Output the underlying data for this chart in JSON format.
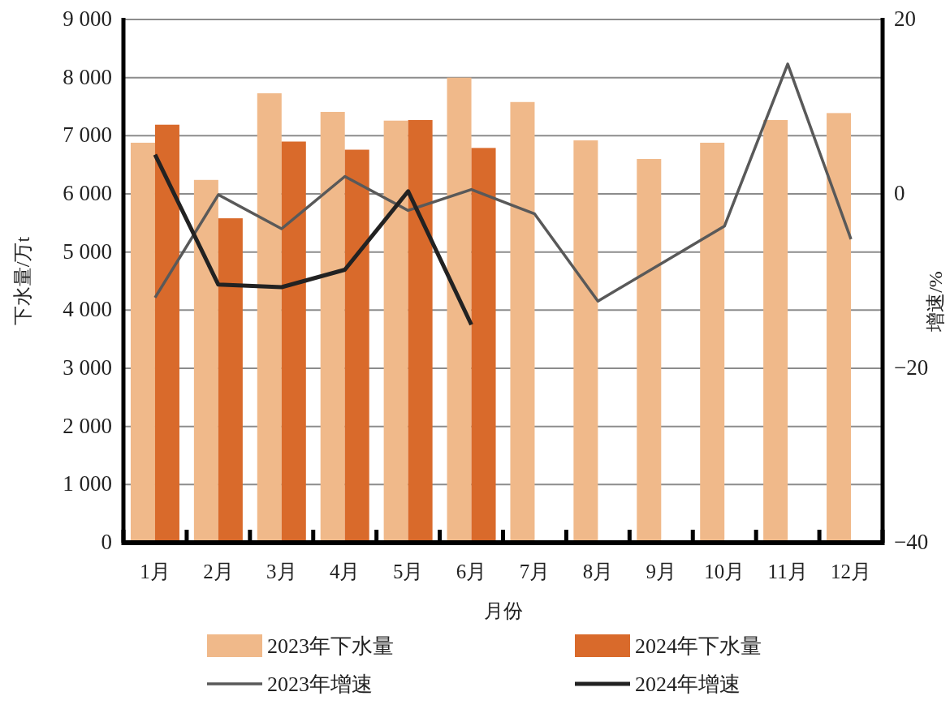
{
  "chart_data": {
    "type": "bar",
    "xlabel": "月份",
    "ylabel": "下水量/万t",
    "y2label": "增速/%",
    "categories": [
      "1月",
      "2月",
      "3月",
      "4月",
      "5月",
      "6月",
      "7月",
      "8月",
      "9月",
      "10月",
      "11月",
      "12月"
    ],
    "series": [
      {
        "name": "2023年下水量",
        "color": "#f0b98a",
        "values": [
          6880,
          6240,
          7730,
          7410,
          7260,
          8000,
          7580,
          6920,
          6600,
          6880,
          7270,
          7390
        ]
      },
      {
        "name": "2024年下水量",
        "color": "#d96a2b",
        "values": [
          7190,
          5580,
          6900,
          6760,
          7270,
          6790,
          null,
          null,
          null,
          null,
          null,
          null
        ]
      },
      {
        "name": "2023年增速",
        "type": "line",
        "axis": "y2",
        "color": "#595959",
        "values": [
          -11.9,
          -0.1,
          -4.0,
          2.0,
          -1.9,
          0.5,
          -2.3,
          -12.3,
          -8.0,
          -3.7,
          14.9,
          -5.2
        ]
      },
      {
        "name": "2024年增速",
        "type": "line",
        "axis": "y2",
        "color": "#222222",
        "values": [
          4.5,
          -10.4,
          -10.7,
          -8.7,
          0.3,
          -15.0,
          null,
          null,
          null,
          null,
          null,
          null
        ]
      }
    ],
    "ylim": [
      0,
      9000
    ],
    "yticks": [
      0,
      {
        "value": 1000,
        "label": "1 000"
      },
      {
        "value": 2000,
        "label": "2 000"
      },
      {
        "value": 3000,
        "label": "3 000"
      },
      {
        "value": 4000,
        "label": "4 000"
      },
      {
        "value": 5000,
        "label": "5 000"
      },
      {
        "value": 6000,
        "label": "6 000"
      },
      {
        "value": 7000,
        "label": "7 000"
      },
      {
        "value": 8000,
        "label": "8 000"
      },
      {
        "value": 9000,
        "label": "9 000"
      }
    ],
    "y2lim": [
      -40,
      20
    ],
    "y2ticks": [
      {
        "value": -40,
        "label": "−40"
      },
      {
        "value": -20,
        "label": "−20"
      },
      0,
      20
    ],
    "grid": "y",
    "legend": "bottom",
    "marker": "none",
    "line_style": "solid"
  }
}
